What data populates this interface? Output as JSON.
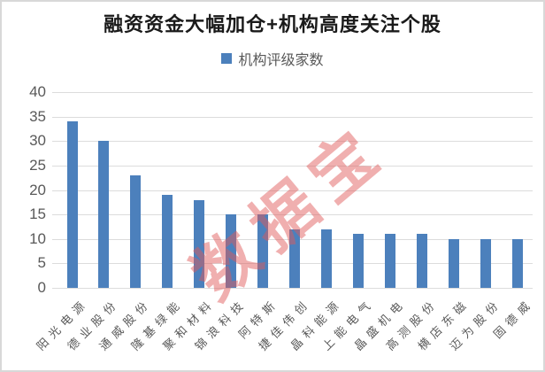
{
  "chart_data": {
    "type": "bar",
    "title": "融资资金大幅加仓+机构高度关注个股",
    "legend": "机构评级家数",
    "legend_position": "top",
    "categories": [
      "阳光电源",
      "德业股份",
      "通威股份",
      "隆基绿能",
      "聚和材料",
      "锦浪科技",
      "阿特斯",
      "捷佳伟创",
      "晶科能源",
      "上能电气",
      "晶盛机电",
      "高测股份",
      "横店东磁",
      "迈为股份",
      "固德威"
    ],
    "values": [
      34,
      30,
      23,
      19,
      18,
      15,
      15,
      12,
      12,
      11,
      11,
      11,
      10,
      10,
      10
    ],
    "xlabel": "",
    "ylabel": "",
    "ylim": [
      0,
      40
    ],
    "yticks": [
      0,
      5,
      10,
      15,
      20,
      25,
      30,
      35,
      40
    ],
    "grid": true,
    "bar_color": "#4C80BC",
    "grid_color": "#dcdcdc",
    "tick_color": "#595959",
    "title_color": "#1a1a1a"
  },
  "watermark": {
    "text": "数据宝",
    "color": "#E05A5A"
  }
}
